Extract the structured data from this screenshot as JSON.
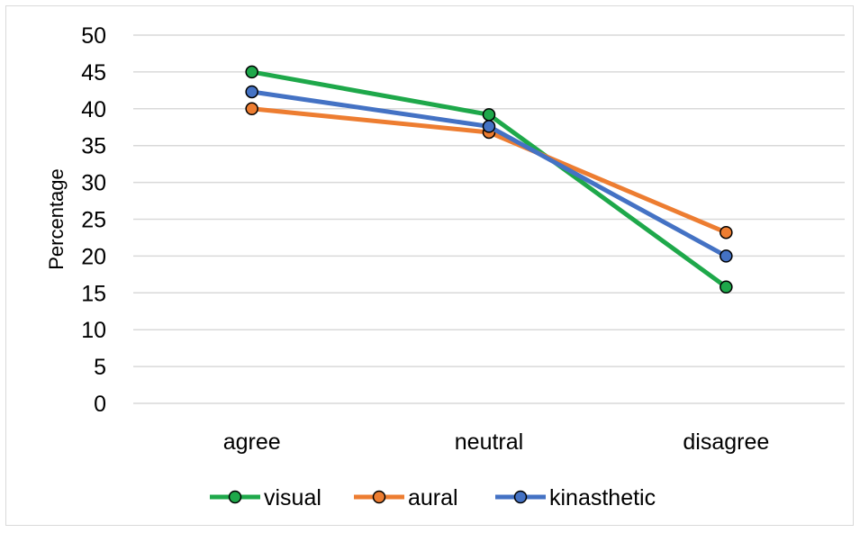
{
  "chart_data": {
    "type": "line",
    "title": "",
    "xlabel": "",
    "ylabel": "Percentage",
    "ylim": [
      0,
      50
    ],
    "ytick_step": 5,
    "yticks": [
      "0",
      "5",
      "10",
      "15",
      "20",
      "25",
      "30",
      "35",
      "40",
      "45",
      "50"
    ],
    "categories": [
      "agree",
      "neutral",
      "disagree"
    ],
    "grid": true,
    "legend_position": "bottom",
    "series": [
      {
        "name": "visual",
        "color": "#1ea84a",
        "values": [
          45.0,
          39.2,
          15.8
        ]
      },
      {
        "name": "aural",
        "color": "#ed7d31",
        "values": [
          40.0,
          36.8,
          23.2
        ]
      },
      {
        "name": "kinasthetic",
        "color": "#4472c4",
        "values": [
          42.3,
          37.6,
          20.0
        ]
      }
    ]
  }
}
